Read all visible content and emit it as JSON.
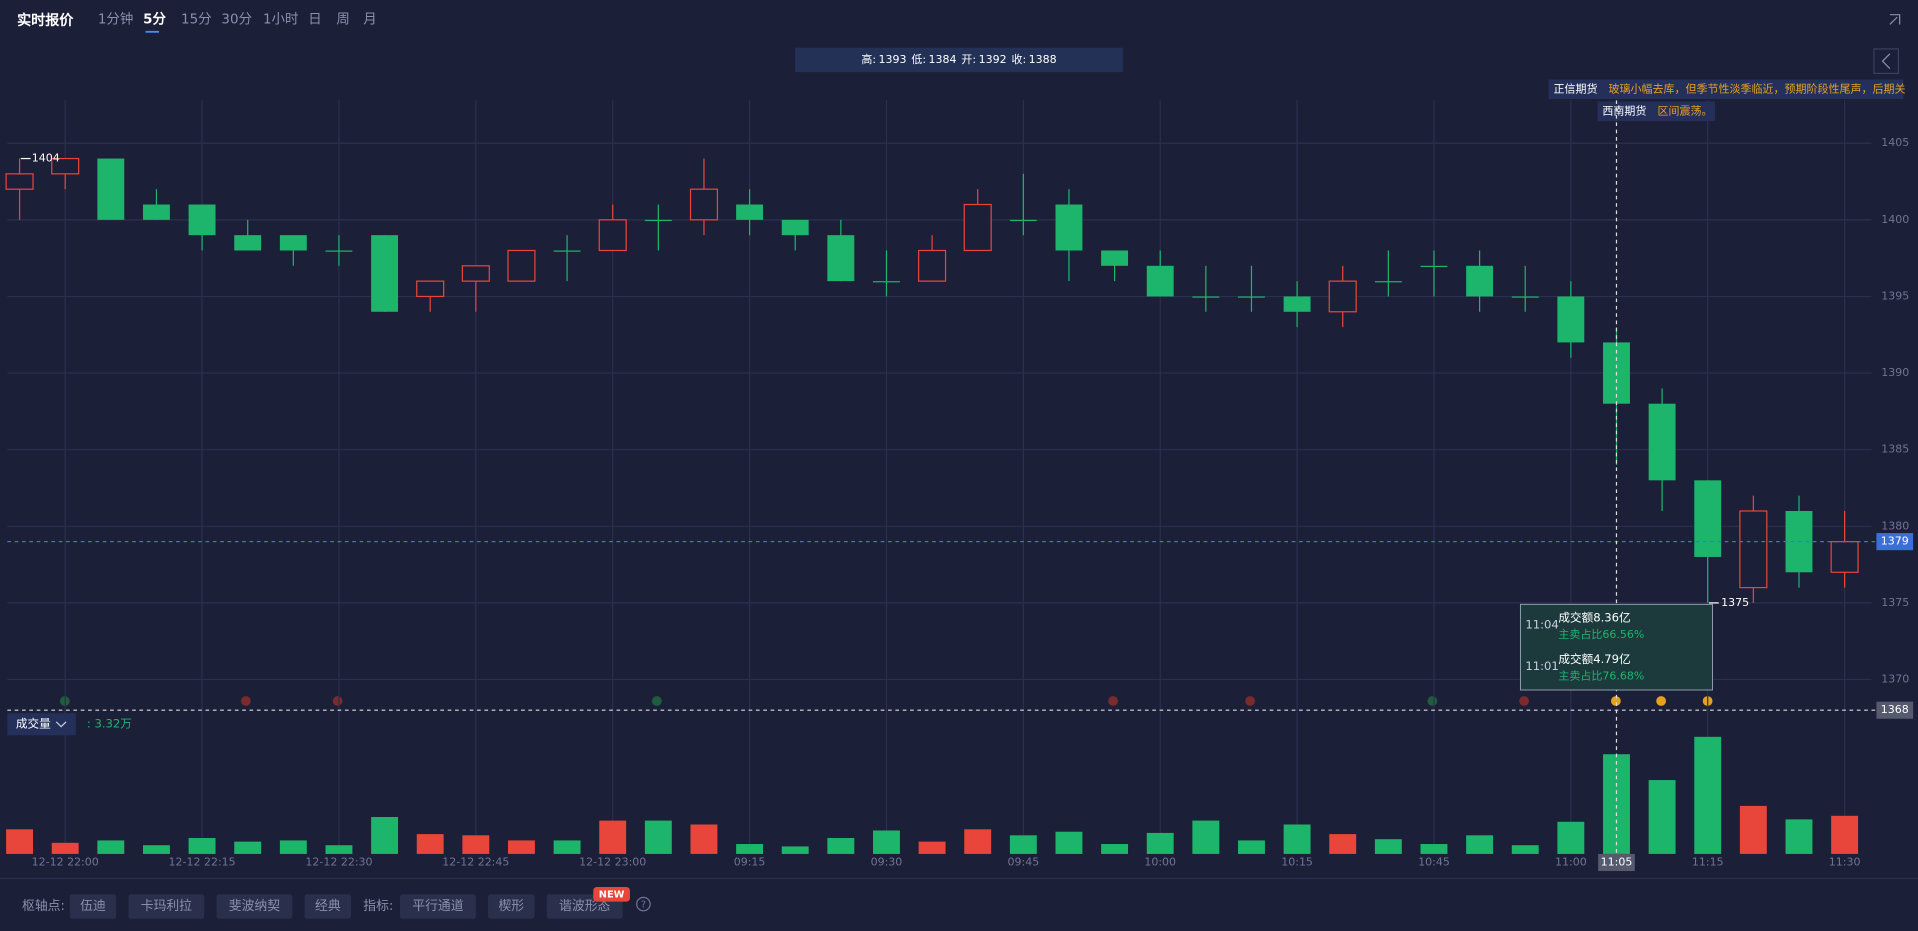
{
  "header": {
    "title": "实时报价",
    "tabs": [
      "1分钟",
      "5分",
      "15分",
      "30分",
      "1小时",
      "日",
      "周",
      "月"
    ],
    "active_tab": 1
  },
  "chart_data": {
    "type": "candlestick",
    "ohlc_legend": [
      {
        "label": "高:",
        "value": 1393
      },
      {
        "label": "低:",
        "value": 1384
      },
      {
        "label": "开:",
        "value": 1392
      },
      {
        "label": "收:",
        "value": 1388
      }
    ],
    "categories": [
      null,
      "12-12 22:00",
      null,
      null,
      "12-12 22:15",
      null,
      null,
      "12-12 22:30",
      null,
      null,
      "12-12 22:45",
      null,
      null,
      "12-12 23:00",
      null,
      null,
      "09:15",
      null,
      null,
      "09:30",
      null,
      null,
      "09:45",
      null,
      null,
      "10:00",
      null,
      null,
      "10:15",
      null,
      null,
      "10:45",
      null,
      null,
      "11:00",
      "11:05",
      null,
      "11:15",
      null,
      null,
      "11:30"
    ],
    "open": [
      1402,
      1403,
      1404,
      1401,
      1401,
      1399,
      1399,
      1398,
      1399,
      1395,
      1396,
      1396,
      1398,
      1398,
      1400,
      1400,
      1401,
      1400,
      1399,
      1396,
      1396,
      1398,
      1400,
      1401,
      1398,
      1397,
      1395,
      1395,
      1395,
      1394,
      1396,
      1397,
      1397,
      1395,
      1395,
      1392,
      1388,
      1383,
      1376,
      1381,
      1377
    ],
    "high": [
      1404,
      1404,
      1404,
      1402,
      1401,
      1400,
      1399,
      1399,
      1399,
      1396,
      1397,
      1398,
      1399,
      1401,
      1401,
      1404,
      1402,
      1400,
      1400,
      1398,
      1399,
      1402,
      1403,
      1402,
      1398,
      1398,
      1397,
      1397,
      1396,
      1397,
      1398,
      1398,
      1398,
      1397,
      1396,
      1393,
      1389,
      1383,
      1382,
      1382,
      1381
    ],
    "low": [
      1400,
      1402,
      1400,
      1400,
      1398,
      1398,
      1397,
      1397,
      1394,
      1394,
      1394,
      1396,
      1396,
      1398,
      1398,
      1399,
      1399,
      1398,
      1396,
      1395,
      1396,
      1398,
      1399,
      1396,
      1396,
      1395,
      1394,
      1394,
      1393,
      1393,
      1395,
      1395,
      1394,
      1394,
      1391,
      1384,
      1381,
      1375,
      1375,
      1376,
      1376
    ],
    "close": [
      1403,
      1404,
      1400,
      1400,
      1399,
      1398,
      1398,
      1398,
      1394,
      1396,
      1397,
      1398,
      1398,
      1400,
      1400,
      1402,
      1400,
      1399,
      1396,
      1396,
      1398,
      1401,
      1400,
      1398,
      1397,
      1395,
      1395,
      1395,
      1394,
      1396,
      1396,
      1397,
      1395,
      1395,
      1392,
      1388,
      1383,
      1378,
      1381,
      1377,
      1379
    ],
    "up_color": "#e8463a",
    "down_color": "#1db56c",
    "ylim": [
      1368.2,
      1407.8
    ],
    "yticks": [
      1370,
      1375,
      1380,
      1385,
      1390,
      1395,
      1400,
      1405
    ],
    "grid": true,
    "max_label": 1404,
    "min_label": 1375,
    "last_price": 1379,
    "crosshair": {
      "x": "11:05",
      "y": 1368
    },
    "volume": {
      "title": "成交量",
      "value_label": ": 3.32万",
      "ylim": [
        0,
        4.4
      ],
      "values": [
        0.82,
        0.37,
        0.45,
        0.29,
        0.53,
        0.41,
        0.45,
        0.29,
        1.23,
        0.66,
        0.62,
        0.45,
        0.45,
        1.11,
        1.11,
        0.98,
        0.33,
        0.25,
        0.53,
        0.78,
        0.41,
        0.82,
        0.62,
        0.74,
        0.33,
        0.7,
        1.11,
        0.45,
        0.98,
        0.66,
        0.49,
        0.33,
        0.62,
        0.29,
        1.07,
        3.32,
        2.46,
        3.9,
        1.6,
        1.15,
        1.27
      ]
    },
    "news": [
      {
        "source": "正信期货",
        "text": "玻璃小幅去库，但季节性淡季临近，预期阶段性尾声，后期关"
      },
      {
        "source": "西南期货",
        "text": "区间震荡。"
      }
    ],
    "tooltip": [
      {
        "time": "11:04",
        "amount": "成交额8.36亿",
        "ratio": "主卖占比66.56%"
      },
      {
        "time": "11:01",
        "amount": "成交额4.79亿",
        "ratio": "主卖占比76.68%"
      }
    ]
  },
  "footer": {
    "pivot_label": "枢轴点:",
    "pivots": [
      "伍迪",
      "卡玛利拉",
      "斐波纳契",
      "经典"
    ],
    "indicator_label": "指标:",
    "indicators": [
      "平行通道",
      "楔形",
      "谐波形态"
    ],
    "badge": "NEW",
    "help": "?"
  }
}
